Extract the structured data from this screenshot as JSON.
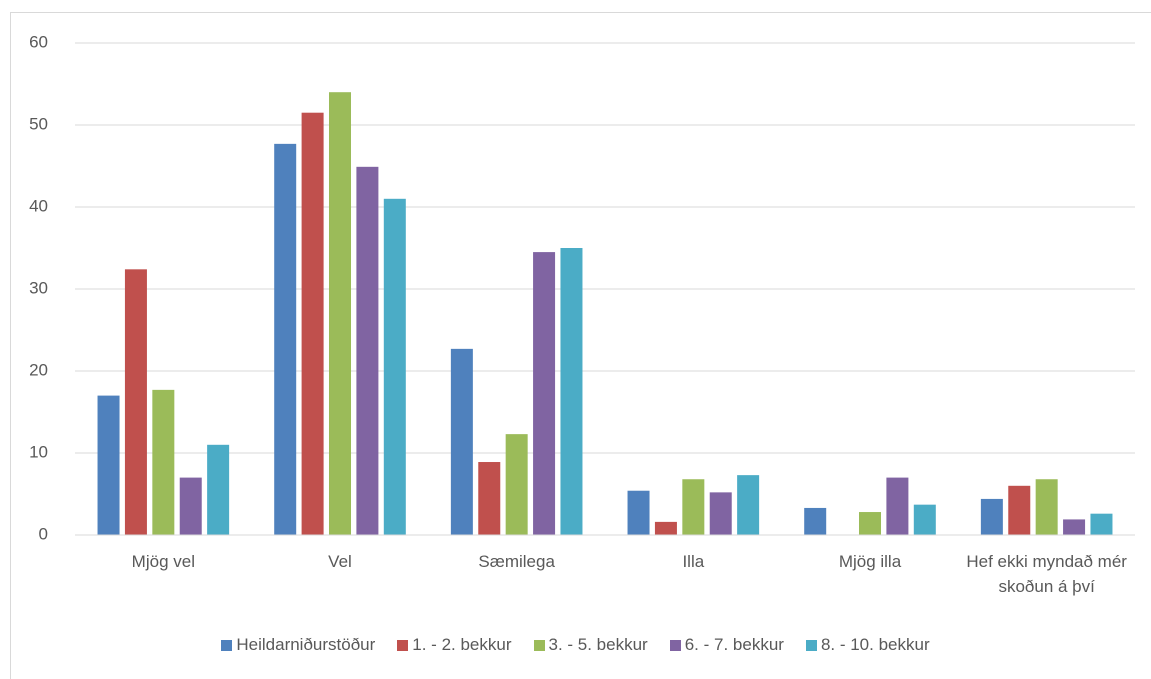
{
  "chart_data": {
    "type": "bar",
    "categories": [
      "Mjög vel",
      "Vel",
      "Sæmilega",
      "Illa",
      "Mjög illa",
      "Hef ekki myndað mér skoðun á því"
    ],
    "series": [
      {
        "name": "Heildarniðurstöður",
        "color": "#4f81bd",
        "values": [
          17,
          47.7,
          22.7,
          5.4,
          3.3,
          4.4
        ]
      },
      {
        "name": "1. - 2. bekkur",
        "color": "#c0504d",
        "values": [
          32.4,
          51.5,
          8.9,
          1.6,
          0,
          6.0
        ]
      },
      {
        "name": "3. - 5. bekkur",
        "color": "#9bbb59",
        "values": [
          17.7,
          54.0,
          12.3,
          6.8,
          2.8,
          6.8
        ]
      },
      {
        "name": "6. - 7. bekkur",
        "color": "#8064a2",
        "values": [
          7.0,
          44.9,
          34.5,
          5.2,
          7.0,
          1.9
        ]
      },
      {
        "name": "8. - 10. bekkur",
        "color": "#4bacc6",
        "values": [
          11.0,
          41.0,
          35.0,
          7.3,
          3.7,
          2.6
        ]
      }
    ],
    "ylim": [
      0,
      60
    ],
    "yticks": [
      0,
      10,
      20,
      30,
      40,
      50,
      60
    ],
    "grid": true,
    "legend": "bottom"
  }
}
